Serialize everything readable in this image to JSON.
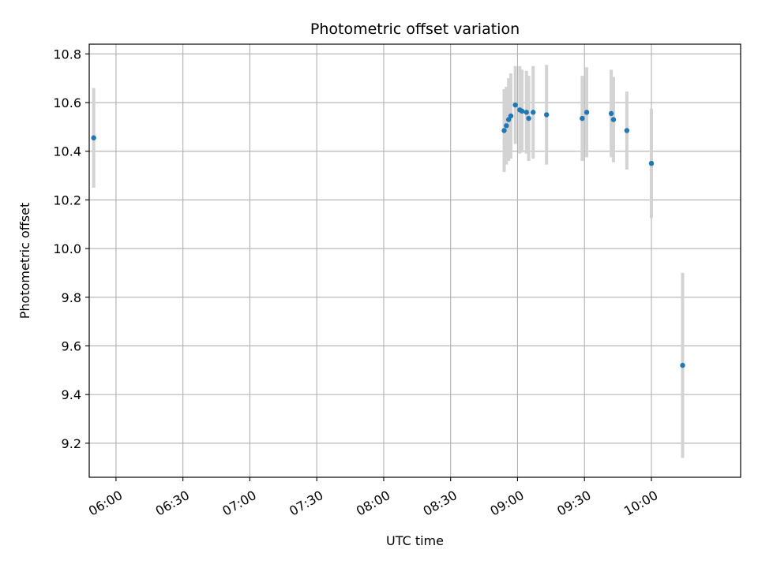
{
  "chart_data": {
    "type": "scatter",
    "title": "Photometric offset variation",
    "xlabel": "UTC time",
    "ylabel": "Photometric offset",
    "grid": true,
    "xlim": [
      "05:48",
      "10:40"
    ],
    "ylim": [
      9.06,
      10.84
    ],
    "x_ticks": [
      "06:00",
      "06:30",
      "07:00",
      "07:30",
      "08:00",
      "08:30",
      "09:00",
      "09:30",
      "10:00"
    ],
    "y_ticks": [
      9.2,
      9.4,
      9.6,
      9.8,
      10.0,
      10.2,
      10.4,
      10.6,
      10.8
    ],
    "colors": {
      "point": "#1f77b4",
      "errorbar": "#d3d3d3",
      "grid": "#b0b0b0"
    },
    "series": [
      {
        "points": [
          {
            "x": "05:50",
            "y": 10.455,
            "err": 0.205
          },
          {
            "x": "08:54",
            "y": 10.485,
            "err": 0.17
          },
          {
            "x": "08:55",
            "y": 10.505,
            "err": 0.16
          },
          {
            "x": "08:56",
            "y": 10.53,
            "err": 0.17
          },
          {
            "x": "08:57",
            "y": 10.545,
            "err": 0.175
          },
          {
            "x": "08:59",
            "y": 10.59,
            "err": 0.16
          },
          {
            "x": "09:01",
            "y": 10.57,
            "err": 0.18
          },
          {
            "x": "09:02",
            "y": 10.565,
            "err": 0.17
          },
          {
            "x": "09:04",
            "y": 10.56,
            "err": 0.17
          },
          {
            "x": "09:05",
            "y": 10.535,
            "err": 0.175
          },
          {
            "x": "09:07",
            "y": 10.56,
            "err": 0.19
          },
          {
            "x": "09:13",
            "y": 10.55,
            "err": 0.205
          },
          {
            "x": "09:29",
            "y": 10.535,
            "err": 0.175
          },
          {
            "x": "09:31",
            "y": 10.56,
            "err": 0.185
          },
          {
            "x": "09:42",
            "y": 10.555,
            "err": 0.18
          },
          {
            "x": "09:43",
            "y": 10.53,
            "err": 0.175
          },
          {
            "x": "09:49",
            "y": 10.485,
            "err": 0.16
          },
          {
            "x": "10:00",
            "y": 10.35,
            "err": 0.225
          },
          {
            "x": "10:14",
            "y": 9.52,
            "err": 0.38
          }
        ]
      }
    ]
  }
}
